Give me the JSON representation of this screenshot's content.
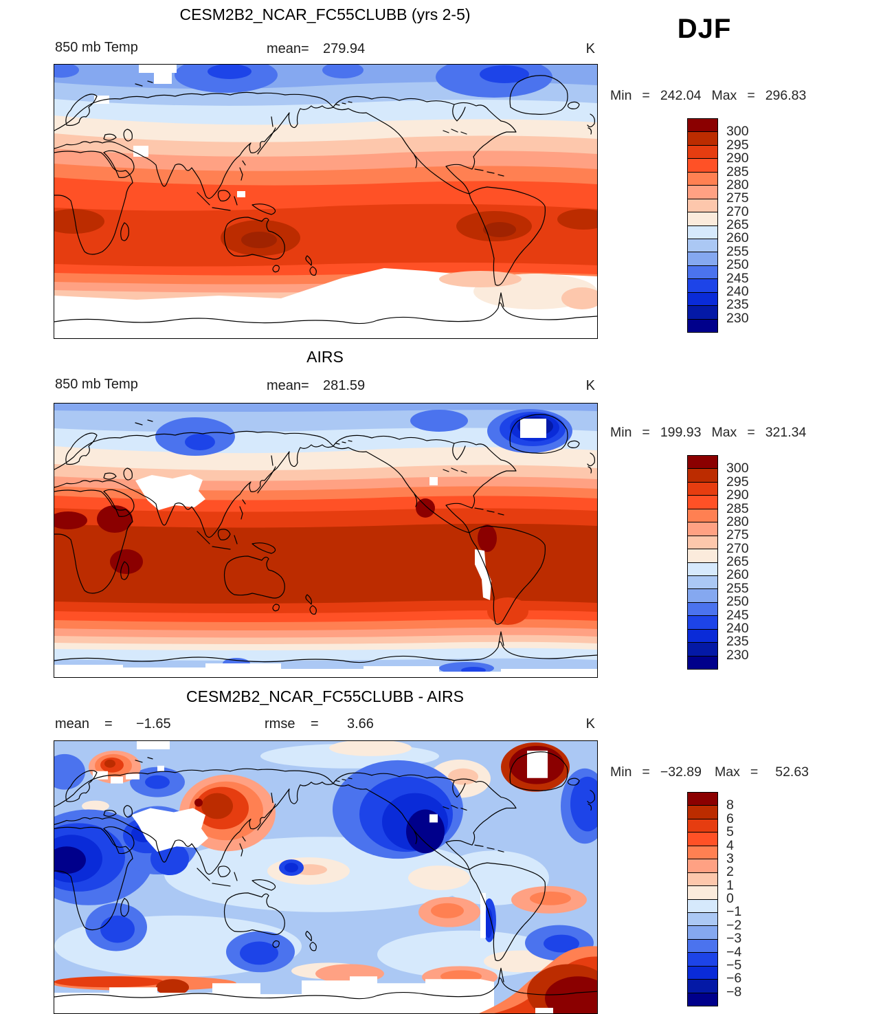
{
  "header": {
    "season": "DJF"
  },
  "panels": [
    {
      "title": "CESM2B2_NCAR_FC55CLUBB (yrs 2-5)",
      "field": "850 mb Temp",
      "mean_label": "mean=",
      "mean": "279.94",
      "unit": "K",
      "min_label": "Min",
      "eq": "=",
      "min": "242.04",
      "max_label": "Max",
      "max": "296.83",
      "colorbar": {
        "labels": [
          "300",
          "295",
          "290",
          "285",
          "280",
          "275",
          "270",
          "265",
          "260",
          "255",
          "250",
          "245",
          "240",
          "235",
          "230"
        ],
        "colors": [
          "#8B0000",
          "#BC2C00",
          "#E63D10",
          "#FF5126",
          "#FF8052",
          "#FFA183",
          "#FDC7AC",
          "#FBEBDC",
          "#D6E9FC",
          "#ABC8F4",
          "#85A8F0",
          "#4B73EE",
          "#1D44E8",
          "#0A2BD8",
          "#0419A6",
          "#00008B"
        ]
      }
    },
    {
      "title": "AIRS",
      "field": "850 mb Temp",
      "mean_label": "mean=",
      "mean": "281.59",
      "unit": "K",
      "min_label": "Min",
      "eq": "=",
      "min": "199.93",
      "max_label": "Max",
      "max": "321.34",
      "colorbar": {
        "labels": [
          "300",
          "295",
          "290",
          "285",
          "280",
          "275",
          "270",
          "265",
          "260",
          "255",
          "250",
          "245",
          "240",
          "235",
          "230"
        ],
        "colors": [
          "#8B0000",
          "#BC2C00",
          "#E63D10",
          "#FF5126",
          "#FF8052",
          "#FFA183",
          "#FDC7AC",
          "#FBEBDC",
          "#D6E9FC",
          "#ABC8F4",
          "#85A8F0",
          "#4B73EE",
          "#1D44E8",
          "#0A2BD8",
          "#0419A6",
          "#00008B"
        ]
      }
    },
    {
      "title": "CESM2B2_NCAR_FC55CLUBB - AIRS",
      "mean_label": "mean",
      "eq": "=",
      "mean": "−1.65",
      "rmse_label": "rmse",
      "rmse": "3.66",
      "unit": "K",
      "min_label": "Min",
      "min": "−32.89",
      "max_label": "Max",
      "max": "52.63",
      "colorbar": {
        "labels": [
          "8",
          "6",
          "5",
          "4",
          "3",
          "2",
          "1",
          "0",
          "−1",
          "−2",
          "−3",
          "−4",
          "−5",
          "−6",
          "−8"
        ],
        "colors": [
          "#8B0000",
          "#BC2C00",
          "#E63D10",
          "#FF5126",
          "#FF8052",
          "#FFA183",
          "#FDC7AC",
          "#FBEBDC",
          "#D6E9FC",
          "#ABC8F4",
          "#85A8F0",
          "#4B73EE",
          "#1D44E8",
          "#0A2BD8",
          "#0419A6",
          "#00008B"
        ]
      }
    }
  ],
  "chart_data": [
    {
      "type": "heatmap",
      "subtype": "filled-contour global map",
      "title": "CESM2B2_NCAR_FC55CLUBB (yrs 2-5)",
      "variable": "850 mb Temp",
      "season": "DJF",
      "units": "K",
      "mean": 279.94,
      "min": 242.04,
      "max": 296.83,
      "contour_levels": [
        230,
        235,
        240,
        245,
        250,
        255,
        260,
        265,
        270,
        275,
        280,
        285,
        290,
        295,
        300
      ],
      "palette_top_to_bottom": [
        "#8B0000",
        "#BC2C00",
        "#E63D10",
        "#FF5126",
        "#FF8052",
        "#FFA183",
        "#FDC7AC",
        "#FBEBDC",
        "#D6E9FC",
        "#ABC8F4",
        "#85A8F0",
        "#4B73EE",
        "#1D44E8",
        "#0A2BD8",
        "#0419A6",
        "#00008B"
      ],
      "legend_position": "right",
      "notes": "warm (red) tropics, cool (blue) northern high latitudes, white missing-data region over Antarctica/Southern Ocean"
    },
    {
      "type": "heatmap",
      "subtype": "filled-contour global map",
      "title": "AIRS",
      "variable": "850 mb Temp",
      "season": "DJF",
      "units": "K",
      "mean": 281.59,
      "min": 199.93,
      "max": 321.34,
      "contour_levels": [
        230,
        235,
        240,
        245,
        250,
        255,
        260,
        265,
        270,
        275,
        280,
        285,
        290,
        295,
        300
      ],
      "palette_top_to_bottom": [
        "#8B0000",
        "#BC2C00",
        "#E63D10",
        "#FF5126",
        "#FF8052",
        "#FFA183",
        "#FDC7AC",
        "#FBEBDC",
        "#D6E9FC",
        "#ABC8F4",
        "#85A8F0",
        "#4B73EE",
        "#1D44E8",
        "#0A2BD8",
        "#0419A6",
        "#00008B"
      ],
      "legend_position": "right",
      "notes": "white missing-data over Tibet, Andes, Greenland interior and Antarctica; dark blue minimum over Greenland"
    },
    {
      "type": "heatmap",
      "subtype": "filled-contour global difference map",
      "title": "CESM2B2_NCAR_FC55CLUBB - AIRS",
      "variable": "850 mb Temp difference",
      "season": "DJF",
      "units": "K",
      "mean": -1.65,
      "rmse": 3.66,
      "min": -32.89,
      "max": 52.63,
      "contour_levels": [
        -8,
        -6,
        -5,
        -4,
        -3,
        -2,
        -1,
        0,
        1,
        2,
        3,
        4,
        5,
        6,
        8
      ],
      "palette_top_to_bottom": [
        "#8B0000",
        "#BC2C00",
        "#E63D10",
        "#FF5126",
        "#FF8052",
        "#FFA183",
        "#FDC7AC",
        "#FBEBDC",
        "#D6E9FC",
        "#ABC8F4",
        "#85A8F0",
        "#4B73EE",
        "#1D44E8",
        "#0A2BD8",
        "#0419A6",
        "#00008B"
      ],
      "legend_position": "right",
      "notes": "mostly negative (blue) bias; warm (red) anomalies over NE Asia, Barents Sea, Greenland and SE corner near Antarctica"
    }
  ]
}
